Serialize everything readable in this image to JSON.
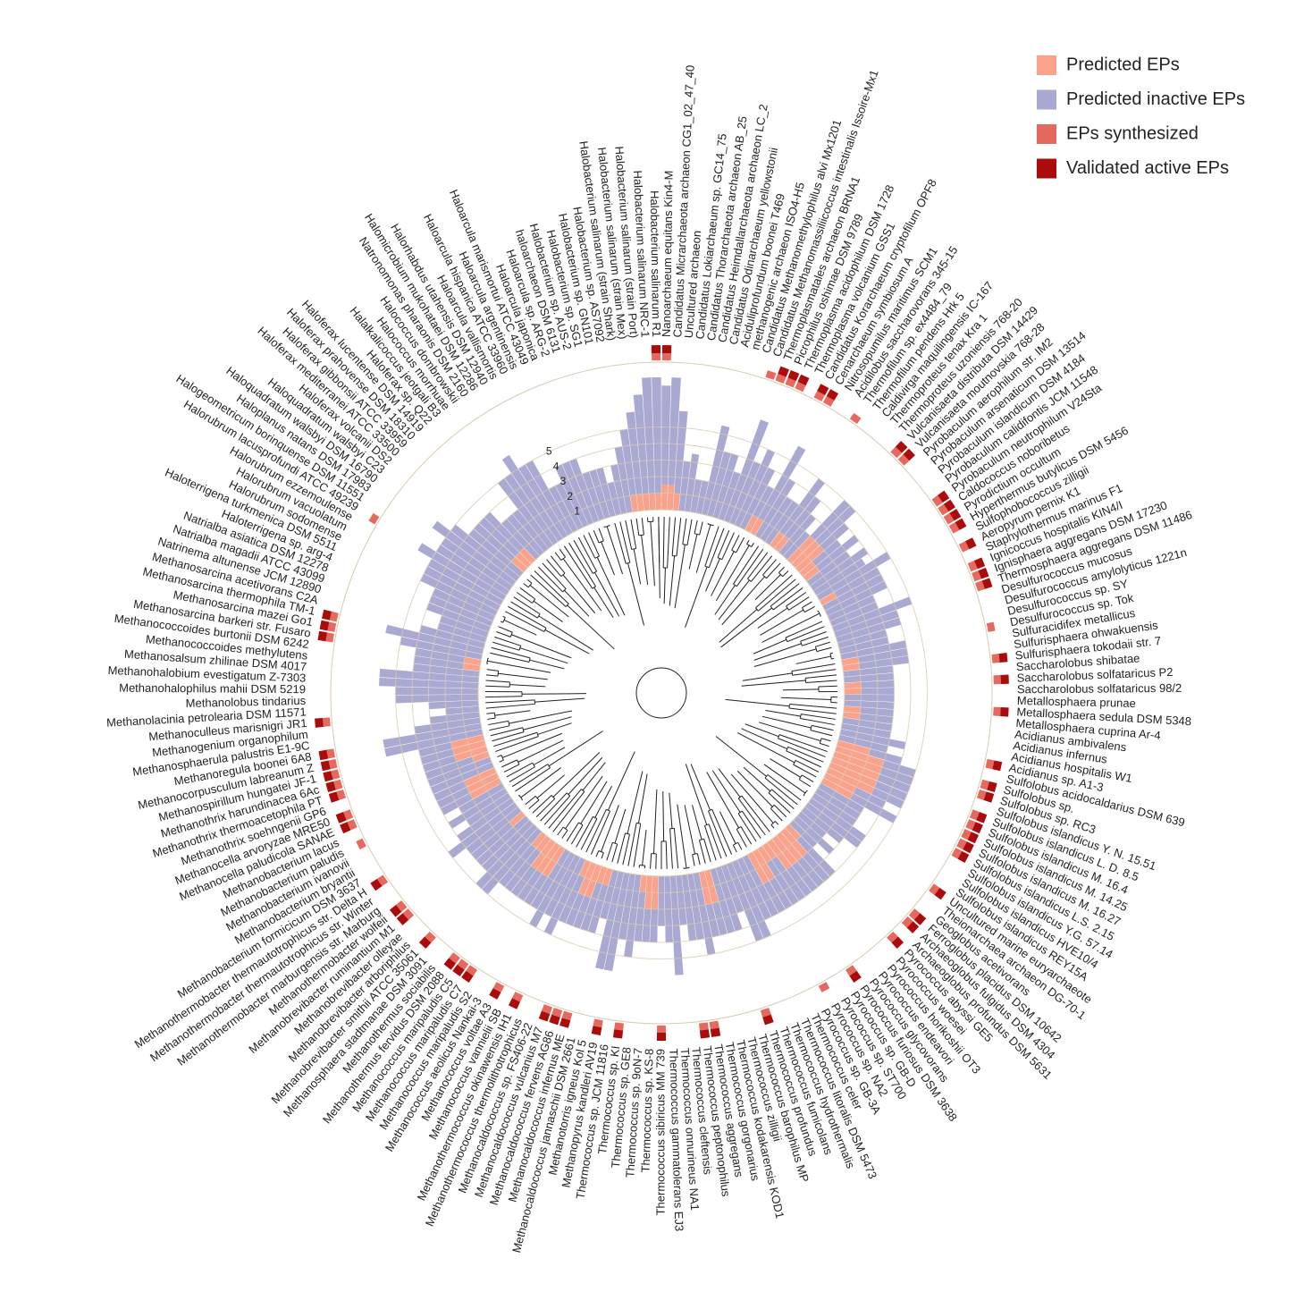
{
  "chart_data": {
    "type": "circular_bar",
    "categories": [
      "Nanoarchaeum equitans Kin4-M",
      "Candidatus Micrarchaeota archaeon CG1_02_47_40",
      "Uncultured archaeon",
      "Candidatus Lokiarchaeum sp. GC14_75",
      "Candidatus Thorarchaeota archaeon AB_25",
      "Candidatus Heimdallarchaeota archaeon LC_2",
      "Candidatus Odinarchaeum yellowstonii",
      "Aciduliprofundum boonei T469",
      "methanogenic archaeon ISO4-H5",
      "Candidatus Methanomethylophilus alvi Mx1201",
      "Candidatus Methanomassiliicoccus intestinalis Issoire-Mx1",
      "Thermoplasmatales archaeon BRNA1",
      "Picrophilus oshimae DSM 9789",
      "Thermoplasma acidophilum DSM 1728",
      "Thermoplasma volcanium GSS1",
      "Candidatus Korarchaeum cryptofilum OPF8",
      "Cenarchaeum symbiosum A",
      "Nitrosopumilus maritimus SCM1",
      "Acidilobus saccharovorans 345-15",
      "Thermofilum sp. ex4484_79",
      "Thermofilum pendens Hrk 5",
      "Caldivirga maquilingensis IC-167",
      "Thermoproteus tenax Kra 1",
      "Thermoproteus uzoniensis 768-20",
      "Vulcanisaeta distributa DSM 14429",
      "Vulcanisaeta moutnovskia 768-28",
      "Pyrobaculum aerophilum str. IM2",
      "Pyrobaculum arsenaticum DSM 13514",
      "Pyrobaculum islandicum DSM 4184",
      "Pyrobaculum calidifontis JCM 11548",
      "Pyrobaculum neutrophilum V24Sta",
      "Caldococcus noboribetus",
      "Pyrodictium occultum",
      "Hyperthermus butylicus DSM 5456",
      "Sulfophobococcus zilligii",
      "Aeropyrum pernix K1",
      "Staphylothermus marinus F1",
      "Ignicoccus hospitalis KIN4/I",
      "Ignisphaera aggregans DSM 17230",
      "Thermosphaera aggregans DSM 11486",
      "Desulfurococcus mucosus",
      "Desulfurococcus amylolyticus 1221n",
      "Desulfurococcus sp. SY",
      "Desulfurococcus sp. Tok",
      "Sulfuracidifex metallicus",
      "Sulfurisphaera ohwakuensis",
      "Sulfurisphaera tokodaii str. 7",
      "Saccharolobus shibatae",
      "Saccharolobus solfataricus P2",
      "Saccharolobus solfataricus 98/2",
      "Metallosphaera prunae",
      "Metallosphaera sedula DSM 5348",
      "Metallosphaera cuprina Ar-4",
      "Acidianus ambivalens",
      "Acidianus infernus",
      "Acidianus hospitalis W1",
      "Acidianus sp. A1-3",
      "Sulfolobus acidocaldarius DSM 639",
      "Sulfolobus sp.",
      "Sulfolobus sp. RC3",
      "Sulfolobus islandicus Y. N. 15.51",
      "Sulfolobus islandicus L. D. 8.5",
      "Sulfolobus islandicus M. 16.4",
      "Sulfolobus islandicus M. 14.25",
      "Sulfolobus islandicus M. 16.27",
      "Sulfolobus islandicus L.S. 2.15",
      "Sulfolobus islandicus Y.G. 57.14",
      "Sulfolobus islandicus HVE10/4",
      "Sulfolobus islandicus REY15A",
      "Uncultured marine euryarchaeote",
      "Theionarchaea archaeon DG-70-1",
      "Geoglobus acetivorans",
      "Ferroglobus placidus DSM 10642",
      "Archaeoglobus fulgidus DSM 4304",
      "Archaeoglobus profundus DSM 5631",
      "Pyrococcus abyssi GE5",
      "Pyrococcus woesei",
      "Pyrococcus horikoshii OT3",
      "Pyrococcus endeavori",
      "Pyrococcus glycovorans",
      "Pyrococcus furiosus DSM 3638",
      "Pyrococcus sp. GB-D",
      "Pyrococcus sp. ST700",
      "Pyrococcus sp. NA2",
      "Pyrococcus sp. GB-3A",
      "Thermococcus celer",
      "Thermococcus litoralis DSM 5473",
      "Thermococcus hydrothermalis",
      "Thermococcus fumicolans",
      "Thermococcus profundus",
      "Thermococcus barophilus MP",
      "Thermococcus zilligii",
      "Thermococcus kodakarensis KOD1",
      "Thermococcus gorgonarius",
      "Thermococcus aggregans",
      "Thermococcus peptonophilus",
      "Thermococcus cleftensis",
      "Thermococcus onnurineus NA1",
      "Thermococcus gammatolerans EJ3",
      "Thermococcus sibiricus MM 739",
      "Thermococcus sp. KS-8",
      "Thermococcus sp. 9oN-7",
      "Thermococcus sp. GE8",
      "Thermococcus sp. KI",
      "Thermococcus sp. JCM 11816",
      "Methanopyrus kandleri AV19",
      "Methanotorris igneus Kol 5",
      "Methanocaldococcus jannaschii DSM 2661",
      "Methanocaldococcus infernus ME",
      "Methanocaldococcus fervens AG86",
      "Methanocaldococcus vulcanius M7",
      "Methanocaldococcus sp. FS406-22",
      "Methanothermococcus thermolithotrophicus",
      "Methanothermococcus okinawensis IH1",
      "Methanococcus vannielii SB",
      "Methanococcus voltae A3",
      "Methanococcus aeolicus Nankai-3",
      "Methanococcus maripaludis S2",
      "Methanococcus maripaludis C7",
      "Methanococcus maripaludis C5",
      "Methanothermus fervidus DSM 2088",
      "Methanothermus sociabilis",
      "Methanosphaera stadtmanae DSM 3091",
      "Methanobrevibacter smithii ATCC 35061",
      "Methanobrevibacter arboriphilus",
      "Methanobrevibacter olleyae",
      "Methanobrevibacter ruminantium M1",
      "Methanothermobacter wolfeii",
      "Methanothermobacter marburgensis str. Marburg",
      "Methanothermobacter thermautotrophicus str. Winter",
      "Methanothermobacter thermautotrophicus str. Delta H",
      "Methanobacterium formicicum DSM 3637",
      "Methanobacterium bryantii",
      "Methanobacterium ivanovii",
      "Methanobacterium paludis",
      "Methanobacterium lacus",
      "Methanocella paludicola SANAE",
      "Methanocella arvoryzae MRE50",
      "Methanothrix soehngenii GP6",
      "Methanothrix thermoacetophila PT",
      "Methanothrix harundinacea 6Ac",
      "Methanospirillum hungatei JF-1",
      "Methanocorpusculum labreanum Z",
      "Methanoregula boonei 6A8",
      "Methanosphaerula palustris E1-9C",
      "Methanogenium organophilum",
      "Methanoculleus marisnigri JR1",
      "Methanolacinia petrolearia DSM 11571",
      "Methanolobus tindarius",
      "Methanohalophilus mahii DSM 5219",
      "Methanohalobium evestigatum Z-7303",
      "Methanosalsum zhilinae DSM 4017",
      "Methanococcoides methylutens",
      "Methanococcoides burtonii DSM 6242",
      "Methanosarcina barkeri str. Fusaro",
      "Methanosarcina mazei Go1",
      "Methanosarcina thermophila TM-1",
      "Methanosarcina acetivorans C2A",
      "Natrinema altunense JCM 12890",
      "Natrialba magadii ATCC 43099",
      "Natrialba asiatica DSM 12278",
      "Haloterrigena sp. arg-4",
      "Haloterrigena turkmenica DSM 5511",
      "Halorubrum sodomense",
      "Halorubrum vacuolatum",
      "Halorubrum ezzemoulense",
      "Halorubrum lacusprofundi ATCC 49239",
      "Halogeometricum borinquense DSM 11551",
      "Haloplanus natans DSM 17983",
      "Haloquadratum walsbyi DSM 16790",
      "Haloquadratum walsbyi C23",
      "Haloferax volcanii DS2",
      "Haloferax mediterranei ATCC 33500",
      "Haloferax gibbonsii ATCC 33959",
      "Haloferax prahovense DSM 18310",
      "Haloferax lucentense DSM 14919",
      "Haloferax sp. Q22",
      "Halalkalicoccus jeotgali B3",
      "Halococcus morrhuae",
      "Halococcus dombrowskii",
      "Natronomonas pharaonis DSM 2160",
      "Halomicrobium mukohataei DSM 12286",
      "Halorhabdus utahensis DSM 12940",
      "Haloarcula vallismortis",
      "Haloarcula hispanica ATCC 33960",
      "Haloarcula argentinensis",
      "Haloarcula marismortui ATCC 43049",
      "Haloarcula japonica",
      "Haloarcula sp. ARG-2",
      "haloarchaeon DSM 6131",
      "Halobacterium sp. AUS-2",
      "Halobacterium sp. SG1",
      "Halobacterium sp. GN101",
      "Halobacterium sp. AS7092",
      "Halobacterium salinarum (strain Shark)",
      "Halobacterium salinarum (strain Mex)",
      "Halobacterium salinarum (strain Port)",
      "Halobacterium salinarum NRC-1",
      "Halobacterium salinarum R1"
    ],
    "series": [
      {
        "name": "Predicted EPs",
        "color": "#f9a38c",
        "values": [
          1.5,
          1.5,
          1,
          0,
          0,
          0,
          0,
          0,
          0,
          0,
          0,
          0,
          0,
          0,
          0,
          1,
          1,
          0,
          0,
          0,
          1,
          1,
          0,
          0,
          2,
          2,
          2,
          1,
          1,
          0,
          0,
          0,
          0,
          1,
          0,
          0,
          0,
          0,
          0,
          0,
          0,
          0,
          0,
          0,
          1,
          1,
          0,
          0,
          1,
          1,
          0,
          0,
          1,
          1,
          0,
          0,
          0,
          0,
          2,
          3,
          3,
          3,
          3,
          3,
          2,
          2,
          0,
          0,
          0,
          0,
          0,
          0,
          0,
          0,
          0,
          1,
          2,
          2,
          2,
          2,
          1,
          1,
          2,
          2,
          0,
          0,
          0,
          0,
          0,
          0,
          0,
          2,
          2,
          0,
          0,
          0,
          0,
          0,
          0,
          0,
          2,
          2,
          1,
          0,
          0,
          0,
          0,
          0,
          1,
          1,
          2,
          2,
          1,
          0,
          0,
          0,
          0,
          2,
          2,
          2,
          1,
          1,
          0,
          0,
          0,
          0,
          1,
          0,
          0,
          0,
          0,
          0,
          0,
          2,
          2,
          2,
          0,
          0,
          1,
          2,
          2,
          2,
          0,
          0,
          0,
          0,
          0,
          0,
          0,
          0,
          0,
          0,
          0,
          1,
          1,
          0,
          0,
          0,
          0,
          0,
          0,
          0,
          0,
          0,
          0,
          0,
          0,
          0,
          0,
          0,
          0,
          0,
          1,
          1,
          1,
          0,
          0,
          0,
          0,
          0,
          0,
          0,
          0,
          0,
          0,
          0,
          0,
          0,
          0,
          0,
          0,
          0,
          0,
          0,
          1,
          1,
          1,
          1,
          1
        ]
      },
      {
        "name": "Predicted inactive EPs",
        "color": "#a9a9d1",
        "values": [
          6,
          6.5,
          5,
          3,
          3.5,
          2,
          2,
          5.5,
          4,
          4,
          3,
          6.5,
          4,
          5,
          4,
          2,
          5,
          4,
          3,
          3,
          4,
          3,
          3,
          2,
          3,
          3,
          2,
          2,
          3,
          3,
          4,
          3.5,
          5,
          3,
          4,
          4,
          3,
          3,
          5,
          4,
          4,
          3,
          3,
          4,
          3,
          3,
          3,
          3,
          2,
          2,
          3,
          3,
          2,
          2,
          3,
          3,
          4,
          3,
          2,
          2,
          2,
          2,
          2,
          2,
          2,
          3,
          3,
          3,
          3,
          4,
          4,
          3,
          2,
          3,
          2,
          3,
          2,
          2,
          2,
          2,
          3,
          3,
          2,
          2,
          4,
          4,
          5,
          5,
          3,
          4,
          4,
          2,
          2,
          5,
          4,
          4,
          3,
          6,
          4,
          3,
          2,
          2,
          3,
          5,
          4,
          6,
          6,
          3,
          3,
          3,
          2,
          2,
          3,
          5,
          4,
          5,
          4,
          2,
          2,
          2,
          3,
          3,
          5,
          5,
          4,
          4,
          3,
          4,
          5,
          4,
          3,
          4,
          3,
          2,
          2,
          2,
          4,
          4,
          3,
          2,
          2,
          2,
          6,
          6,
          4,
          3,
          2,
          3,
          5,
          5,
          6,
          6,
          4,
          3,
          3,
          5,
          6,
          4,
          3,
          3,
          4,
          4,
          4,
          5,
          5,
          5,
          6,
          5,
          5,
          6,
          5,
          4,
          3,
          3,
          3,
          3,
          3,
          3,
          5,
          5,
          6,
          5,
          5,
          3,
          3,
          4,
          4,
          4,
          3,
          3,
          3,
          2,
          3,
          4,
          4,
          5,
          6,
          7,
          7
        ]
      },
      {
        "name": "EPs synthesized",
        "color": "#e6695f",
        "values": [
          1,
          0,
          0,
          0,
          0,
          0,
          0,
          0,
          0,
          0,
          1,
          1,
          1,
          1,
          0,
          1,
          1,
          0,
          0,
          1,
          0,
          0,
          0,
          0,
          1,
          1,
          0,
          0,
          0,
          0,
          1,
          1,
          1,
          1,
          0,
          1,
          0,
          1,
          1,
          1,
          0,
          0,
          0,
          1,
          0,
          0,
          1,
          0,
          1,
          0,
          0,
          1,
          0,
          0,
          0,
          0,
          1,
          0,
          1,
          1,
          0,
          1,
          1,
          1,
          1,
          1,
          0,
          0,
          0,
          1,
          0,
          0,
          1,
          1,
          0,
          1,
          0,
          0,
          0,
          0,
          1,
          0,
          0,
          1,
          0,
          0,
          0,
          0,
          0,
          1,
          0,
          0,
          0,
          0,
          1,
          1,
          0,
          0,
          0,
          1,
          0,
          0,
          0,
          1,
          0,
          1,
          0,
          0,
          1,
          1,
          1,
          0,
          0,
          1,
          0,
          1,
          0,
          0,
          1,
          1,
          1,
          0,
          0,
          1,
          0,
          0,
          1,
          1,
          0,
          0,
          1,
          0,
          0,
          0,
          1,
          0,
          1,
          1,
          0,
          1,
          1,
          1,
          1,
          1,
          0,
          0,
          1,
          0,
          0,
          0,
          0,
          0,
          0,
          0,
          1,
          1,
          1,
          0,
          0,
          0,
          0,
          0,
          0,
          0,
          0,
          0,
          1,
          0,
          0,
          0,
          0,
          0,
          0,
          0,
          0,
          0,
          0,
          0,
          0,
          0,
          0,
          0,
          0,
          0,
          0,
          0,
          0,
          0,
          0,
          0,
          0,
          0,
          0,
          0,
          0,
          0,
          0,
          0,
          1
        ]
      },
      {
        "name": "Validated active EPs",
        "color": "#aa0b0b",
        "values": [
          1,
          0,
          0,
          0,
          0,
          0,
          0,
          0,
          0,
          0,
          0,
          1,
          1,
          1,
          0,
          1,
          1,
          0,
          0,
          0,
          0,
          0,
          0,
          0,
          1,
          1,
          0,
          0,
          0,
          0,
          1,
          1,
          1,
          1,
          0,
          1,
          0,
          1,
          1,
          1,
          0,
          0,
          0,
          0,
          0,
          0,
          1,
          0,
          1,
          0,
          0,
          1,
          0,
          0,
          0,
          0,
          1,
          0,
          1,
          1,
          0,
          1,
          1,
          1,
          1,
          1,
          0,
          0,
          0,
          1,
          0,
          0,
          1,
          1,
          0,
          1,
          0,
          0,
          0,
          0,
          1,
          0,
          0,
          0,
          0,
          0,
          0,
          0,
          0,
          1,
          0,
          0,
          0,
          0,
          1,
          1,
          0,
          0,
          0,
          1,
          0,
          0,
          0,
          1,
          0,
          1,
          0,
          0,
          1,
          1,
          1,
          0,
          0,
          1,
          0,
          1,
          0,
          0,
          1,
          1,
          1,
          0,
          0,
          1,
          0,
          0,
          1,
          1,
          0,
          0,
          1,
          0,
          0,
          0,
          0,
          0,
          1,
          1,
          0,
          1,
          1,
          1,
          1,
          1,
          0,
          0,
          1,
          0,
          0,
          0,
          0,
          0,
          0,
          0,
          1,
          1,
          1,
          0,
          0,
          0,
          0,
          0,
          0,
          0,
          0,
          0,
          0,
          0,
          0,
          0,
          0,
          0,
          0,
          0,
          0,
          0,
          0,
          0,
          0,
          0,
          0,
          0,
          0,
          0,
          0,
          0,
          0,
          0,
          0,
          0,
          0,
          0,
          0,
          0,
          0,
          0,
          0,
          0,
          1
        ]
      }
    ],
    "ylim": [
      0,
      8
    ],
    "yticks": [
      1,
      2,
      3,
      4,
      5
    ],
    "grid": true,
    "legend_position": "top-right"
  }
}
